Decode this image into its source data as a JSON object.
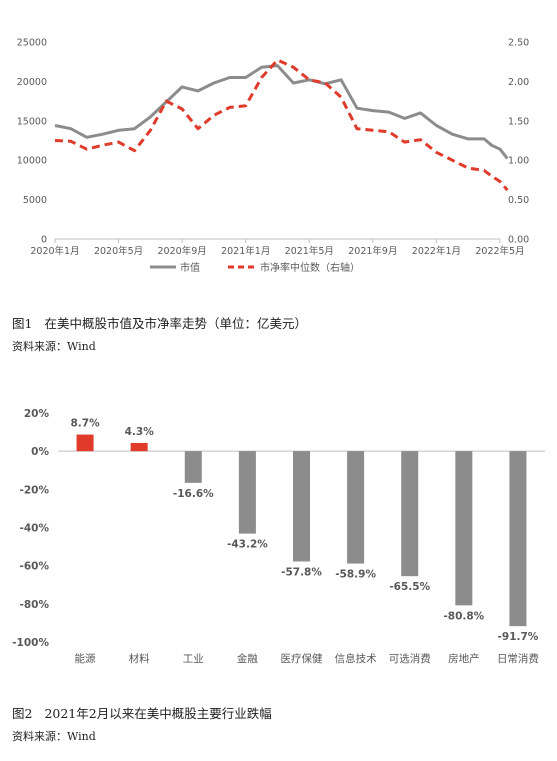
{
  "figure1": {
    "caption_num": "图1",
    "caption_text": "在美中概股市值及市净率走势（单位：亿美元）",
    "source": "资料来源：Wind"
  },
  "figure2": {
    "caption_num": "图2",
    "caption_text": "2021年2月以来在美中概股主要行业跌幅",
    "source": "资料来源：Wind"
  },
  "chart_data": [
    {
      "type": "line",
      "x_ticks": [
        "2020年1月",
        "2020年5月",
        "2020年9月",
        "2021年1月",
        "2021年5月",
        "2021年9月",
        "2022年1月",
        "2022年5月"
      ],
      "y_left_ticks": [
        "0",
        "5000",
        "10000",
        "15000",
        "20000",
        "25000"
      ],
      "y_right_ticks": [
        "0.00",
        "0.50",
        "1.00",
        "1.50",
        "2.00",
        "2.50"
      ],
      "ylim_left": [
        0,
        25000
      ],
      "ylim_right": [
        0,
        2.5
      ],
      "x_start": "2020-01",
      "x_end": "2022-05",
      "legend_position": "bottom",
      "series": [
        {
          "name": "市值",
          "axis": "left",
          "color": "#8c8c8c",
          "style": "solid",
          "points": [
            [
              "2020-01",
              14400
            ],
            [
              "2020-02",
              14000
            ],
            [
              "2020-03",
              12900
            ],
            [
              "2020-04",
              13300
            ],
            [
              "2020-05",
              13800
            ],
            [
              "2020-06",
              14000
            ],
            [
              "2020-07",
              15500
            ],
            [
              "2020-08",
              17400
            ],
            [
              "2020-09",
              19300
            ],
            [
              "2020-10",
              18800
            ],
            [
              "2020-11",
              19800
            ],
            [
              "2020-12",
              20500
            ],
            [
              "2021-01",
              20500
            ],
            [
              "2021-02",
              21800
            ],
            [
              "2021-03",
              22000
            ],
            [
              "2021-04",
              19800
            ],
            [
              "2021-05",
              20200
            ],
            [
              "2021-06",
              19700
            ],
            [
              "2021-07",
              20200
            ],
            [
              "2021-08",
              16600
            ],
            [
              "2021-09",
              16300
            ],
            [
              "2021-10",
              16100
            ],
            [
              "2021-11",
              15300
            ],
            [
              "2021-12",
              16000
            ],
            [
              "2022-01",
              14400
            ],
            [
              "2022-02",
              13300
            ],
            [
              "2022-03",
              12700
            ],
            [
              "2022-04",
              12700
            ],
            [
              "2022-04-15",
              11900
            ],
            [
              "2022-05",
              11400
            ],
            [
              "2022-05-15",
              10200
            ]
          ]
        },
        {
          "name": "市净率中位数（右轴）",
          "axis": "right",
          "color": "#e03a2a",
          "style": "dashed",
          "points": [
            [
              "2020-01",
              1.25
            ],
            [
              "2020-02",
              1.24
            ],
            [
              "2020-03",
              1.14
            ],
            [
              "2020-04",
              1.19
            ],
            [
              "2020-05",
              1.23
            ],
            [
              "2020-06",
              1.12
            ],
            [
              "2020-07",
              1.38
            ],
            [
              "2020-08",
              1.75
            ],
            [
              "2020-09",
              1.65
            ],
            [
              "2020-10",
              1.4
            ],
            [
              "2020-11",
              1.57
            ],
            [
              "2020-12",
              1.67
            ],
            [
              "2021-01",
              1.69
            ],
            [
              "2021-02",
              2.05
            ],
            [
              "2021-03",
              2.27
            ],
            [
              "2021-04",
              2.18
            ],
            [
              "2021-05",
              2.02
            ],
            [
              "2021-06",
              1.98
            ],
            [
              "2021-07",
              1.8
            ],
            [
              "2021-08",
              1.4
            ],
            [
              "2021-09",
              1.38
            ],
            [
              "2021-10",
              1.36
            ],
            [
              "2021-11",
              1.23
            ],
            [
              "2021-12",
              1.26
            ],
            [
              "2022-01",
              1.1
            ],
            [
              "2022-02",
              1.0
            ],
            [
              "2022-03",
              0.9
            ],
            [
              "2022-04",
              0.87
            ],
            [
              "2022-04-15",
              0.8
            ],
            [
              "2022-05",
              0.73
            ],
            [
              "2022-05-15",
              0.62
            ]
          ]
        }
      ]
    },
    {
      "type": "bar",
      "categories": [
        "能源",
        "材料",
        "工业",
        "金融",
        "医疗保健",
        "信息技术",
        "可选消费",
        "房地产",
        "日常消费"
      ],
      "values": [
        8.7,
        4.3,
        -16.6,
        -43.2,
        -57.8,
        -58.9,
        -65.5,
        -80.8,
        -91.7
      ],
      "value_labels": [
        "8.7%",
        "4.3%",
        "-16.6%",
        "-43.2%",
        "-57.8%",
        "-58.9%",
        "-65.5%",
        "-80.8%",
        "-91.7%"
      ],
      "y_ticks": [
        "20%",
        "0%",
        "-20%",
        "-40%",
        "-60%",
        "-80%",
        "-100%"
      ],
      "ylim": [
        -100,
        20
      ],
      "positive_color": "#e03a2a",
      "negative_color": "#8c8c8c"
    }
  ]
}
